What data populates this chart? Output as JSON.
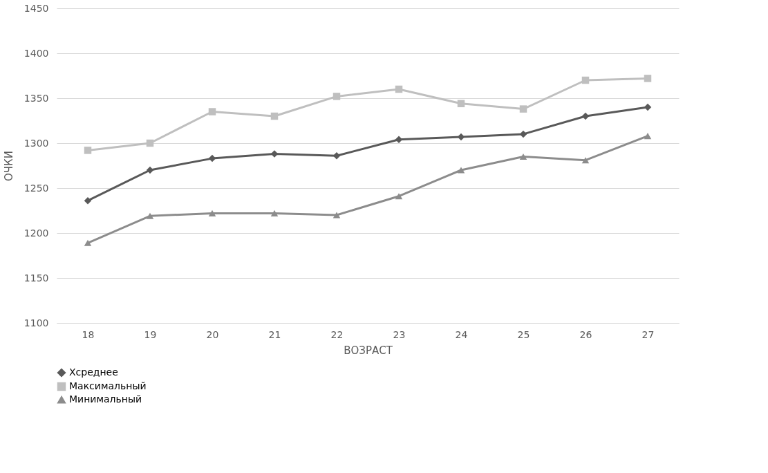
{
  "chart_data": {
    "type": "line",
    "xlabel": "ВОЗРАСТ",
    "ylabel": "ОЧКИ",
    "categories": [
      "18",
      "19",
      "20",
      "21",
      "22",
      "23",
      "24",
      "25",
      "26",
      "27"
    ],
    "series": [
      {
        "name": "Хсреднее",
        "color": "#595959",
        "marker": "diamond",
        "values": [
          1236,
          1270,
          1283,
          1288,
          1286,
          1304,
          1307,
          1310,
          1330,
          1340
        ]
      },
      {
        "name": "Максимальный",
        "color": "#bfbfbf",
        "marker": "square",
        "values": [
          1292,
          1300,
          1335,
          1330,
          1352,
          1360,
          1344,
          1338,
          1370,
          1372
        ]
      },
      {
        "name": "Минимальный",
        "color": "#8c8c8c",
        "marker": "triangle",
        "values": [
          1189,
          1219,
          1222,
          1222,
          1220,
          1241,
          1270,
          1285,
          1281,
          1308
        ]
      }
    ],
    "ylim": [
      1100,
      1450
    ],
    "yticks": [
      1100,
      1150,
      1200,
      1250,
      1300,
      1350,
      1400,
      1450
    ],
    "grid": "y",
    "legend": "bottom",
    "line_style": "solid"
  }
}
